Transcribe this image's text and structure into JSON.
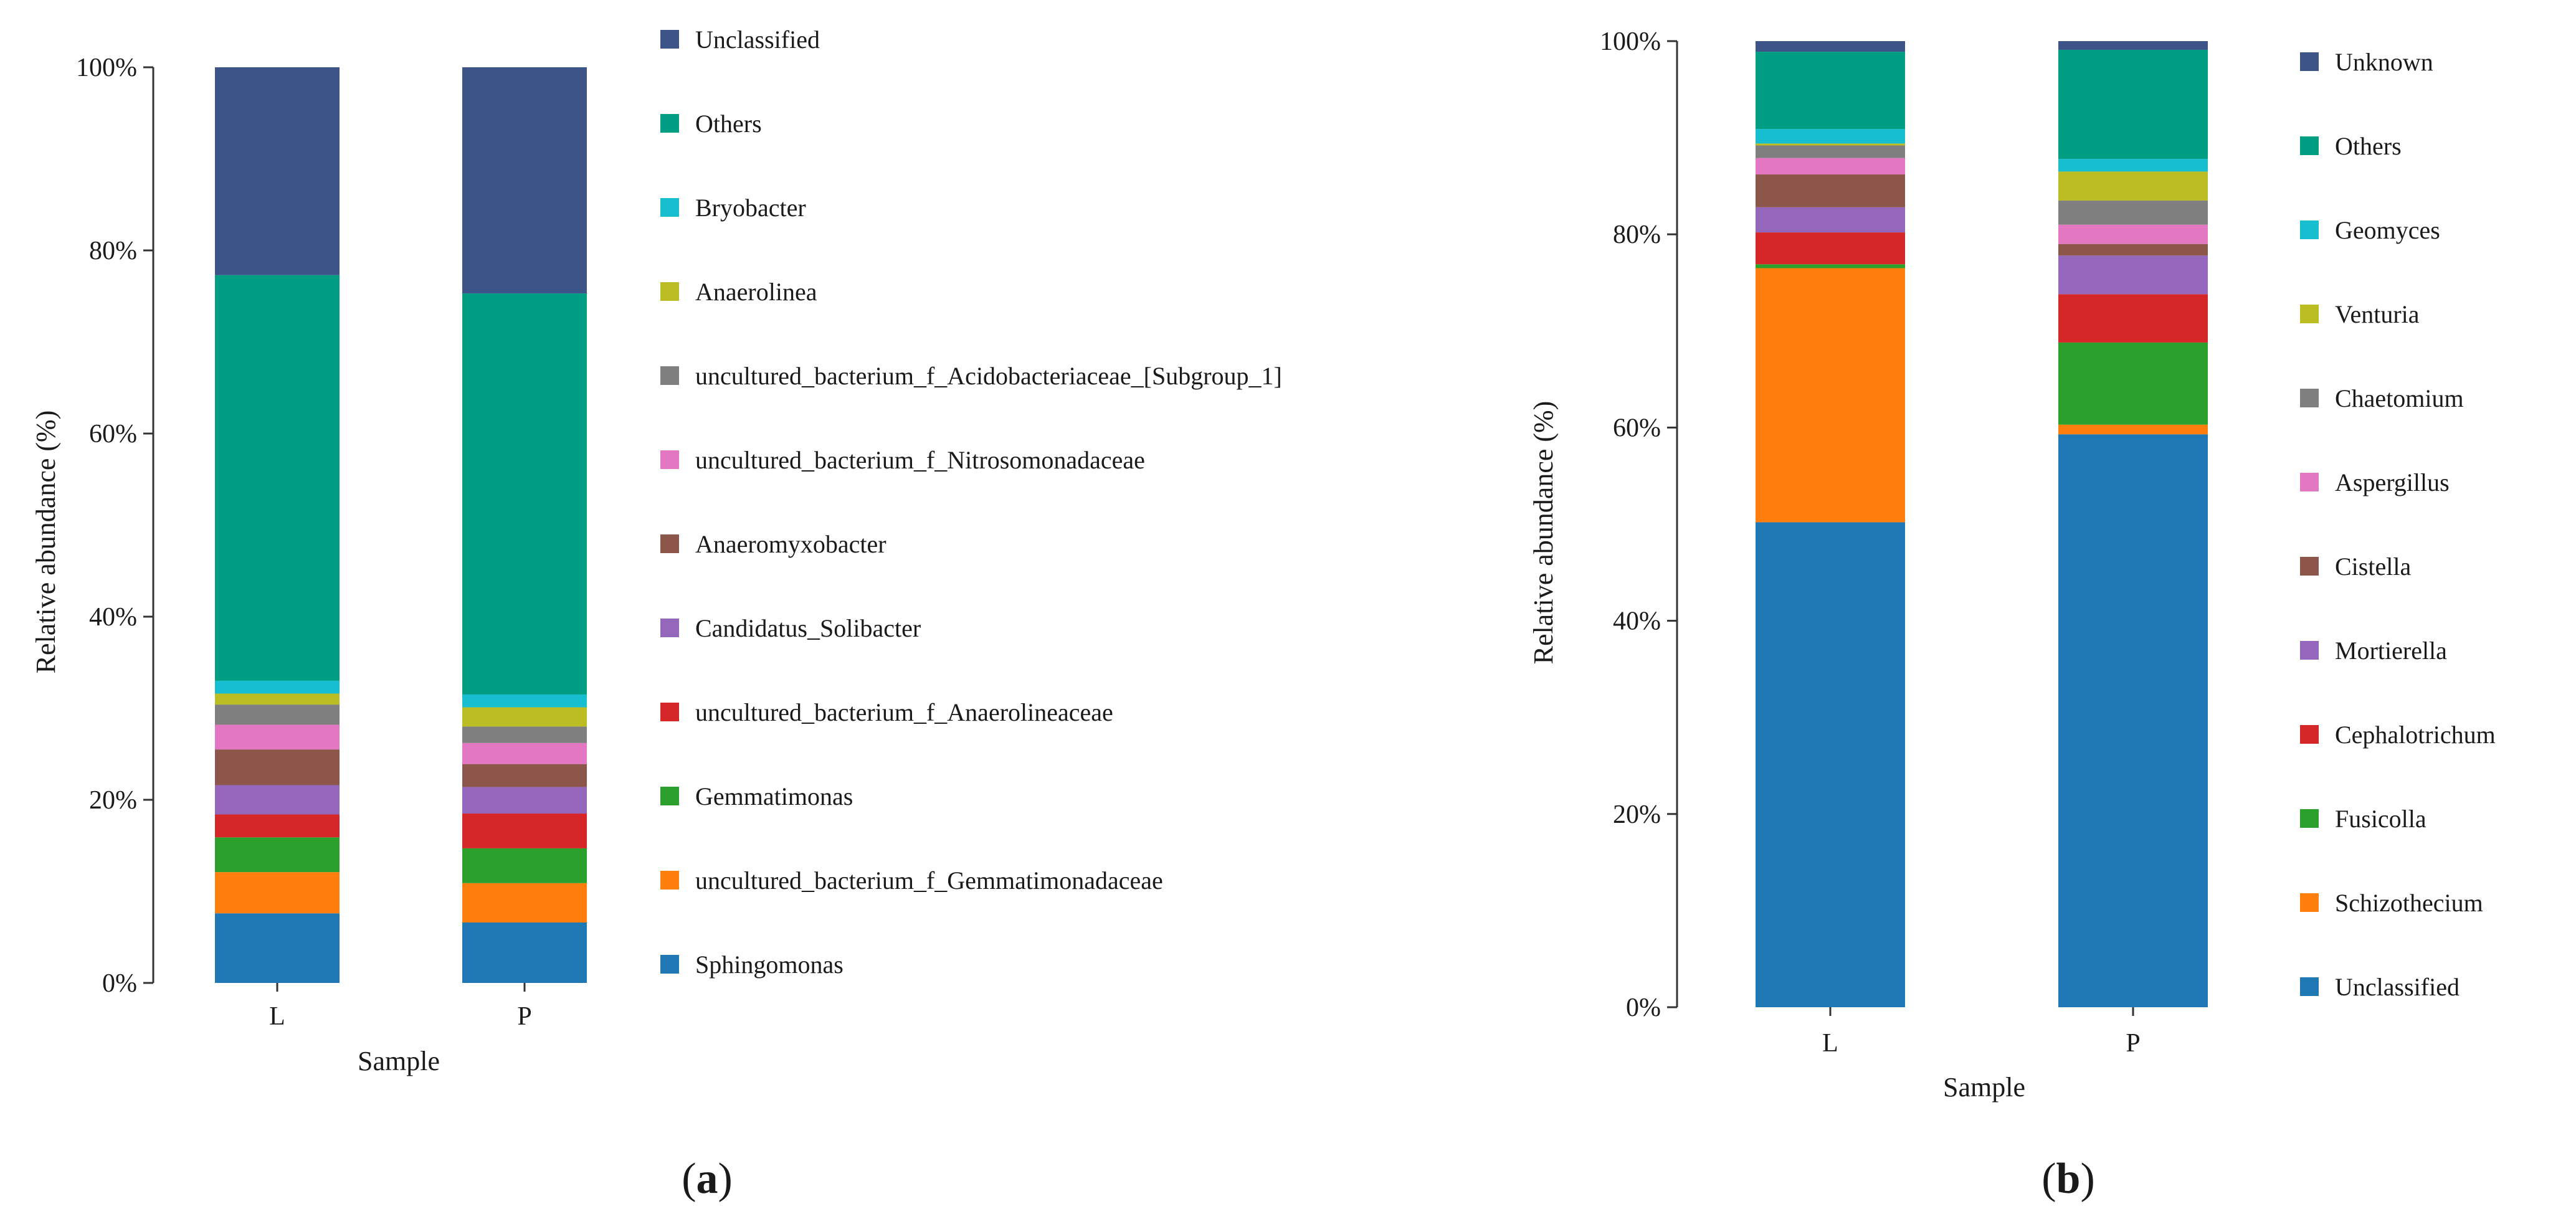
{
  "chart_data": [
    {
      "panel_label": "a",
      "type": "bar",
      "stacked": true,
      "xlabel": "Sample",
      "ylabel": "Relative abundance (%)",
      "ylim": [
        0,
        100
      ],
      "y_ticks": [
        "0%",
        "20%",
        "40%",
        "60%",
        "80%",
        "100%"
      ],
      "categories": [
        "L",
        "P"
      ],
      "legend_position": "right",
      "series": [
        {
          "name": "Sphingomonas",
          "color": "#1f77b4",
          "values": [
            7.6,
            6.6
          ]
        },
        {
          "name": "uncultured_bacterium_f_Gemmatimonadaceae",
          "color": "#ff7f0e",
          "values": [
            4.5,
            4.3
          ]
        },
        {
          "name": "Gemmatimonas",
          "color": "#2ca02c",
          "values": [
            3.8,
            3.8
          ]
        },
        {
          "name": "uncultured_bacterium_f_Anaerolineaceae",
          "color": "#d62728",
          "values": [
            2.5,
            3.8
          ]
        },
        {
          "name": "Candidatus_Solibacter",
          "color": "#9467bd",
          "values": [
            3.2,
            2.9
          ]
        },
        {
          "name": "Anaeromyxobacter",
          "color": "#8c564b",
          "values": [
            3.9,
            2.5
          ]
        },
        {
          "name": "uncultured_bacterium_f_Nitrosomonadaceae",
          "color": "#e377c2",
          "values": [
            2.7,
            2.3
          ]
        },
        {
          "name": "uncultured_bacterium_f_Acidobacteriaceae_[Subgroup_1]",
          "color": "#7f7f7f",
          "values": [
            2.2,
            1.8
          ]
        },
        {
          "name": "Anaerolinea",
          "color": "#bcbd22",
          "values": [
            1.2,
            2.1
          ]
        },
        {
          "name": "Bryobacter",
          "color": "#17becf",
          "values": [
            1.4,
            1.4
          ]
        },
        {
          "name": "Others",
          "color": "#009e82",
          "values": [
            44.3,
            43.8
          ]
        },
        {
          "name": "Unclassified",
          "color": "#3c5488",
          "values": [
            22.7,
            24.7
          ]
        }
      ]
    },
    {
      "panel_label": "b",
      "type": "bar",
      "stacked": true,
      "xlabel": "Sample",
      "ylabel": "Relative abundance (%)",
      "ylim": [
        0,
        100
      ],
      "y_ticks": [
        "0%",
        "20%",
        "40%",
        "60%",
        "80%",
        "100%"
      ],
      "categories": [
        "L",
        "P"
      ],
      "legend_position": "right",
      "series": [
        {
          "name": "Unclassified",
          "color": "#1f77b4",
          "values": [
            50.2,
            59.3
          ]
        },
        {
          "name": "Schizothecium",
          "color": "#ff7f0e",
          "values": [
            26.3,
            1.0
          ]
        },
        {
          "name": "Fusicolla",
          "color": "#2ca02c",
          "values": [
            0.4,
            8.5
          ]
        },
        {
          "name": "Cephalotrichum",
          "color": "#d62728",
          "values": [
            3.3,
            5.0
          ]
        },
        {
          "name": "Mortierella",
          "color": "#9467bd",
          "values": [
            2.6,
            4.0
          ]
        },
        {
          "name": "Cistella",
          "color": "#8c564b",
          "values": [
            3.4,
            1.2
          ]
        },
        {
          "name": "Aspergillus",
          "color": "#e377c2",
          "values": [
            1.7,
            2.0
          ]
        },
        {
          "name": "Chaetomium",
          "color": "#7f7f7f",
          "values": [
            1.3,
            2.5
          ]
        },
        {
          "name": "Venturia",
          "color": "#bcbd22",
          "values": [
            0.2,
            3.0
          ]
        },
        {
          "name": "Geomyces",
          "color": "#17becf",
          "values": [
            1.5,
            1.3
          ]
        },
        {
          "name": "Others",
          "color": "#009e82",
          "values": [
            8.0,
            11.3
          ]
        },
        {
          "name": "Unknown",
          "color": "#3c5488",
          "values": [
            1.1,
            0.9
          ]
        }
      ]
    }
  ]
}
